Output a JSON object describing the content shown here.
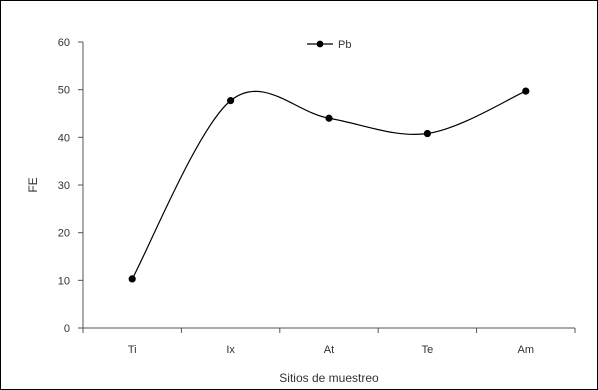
{
  "chart_data": {
    "type": "line",
    "categories": [
      "Ti",
      "Ix",
      "At",
      "Te",
      "Am"
    ],
    "series": [
      {
        "name": "Pb",
        "values": [
          10.3,
          47.7,
          44.0,
          40.8,
          49.7
        ]
      }
    ],
    "title": "",
    "xlabel": "Sitios de muestreo",
    "ylabel": "FE",
    "ylim": [
      0,
      60
    ],
    "yticks": [
      0,
      10,
      20,
      30,
      40,
      50,
      60
    ],
    "grid": false,
    "legend_position": "top-center",
    "smooth": true,
    "colors": {
      "line": "#000000",
      "marker": "#000000",
      "axis": "#555555",
      "text": "#333333"
    }
  }
}
